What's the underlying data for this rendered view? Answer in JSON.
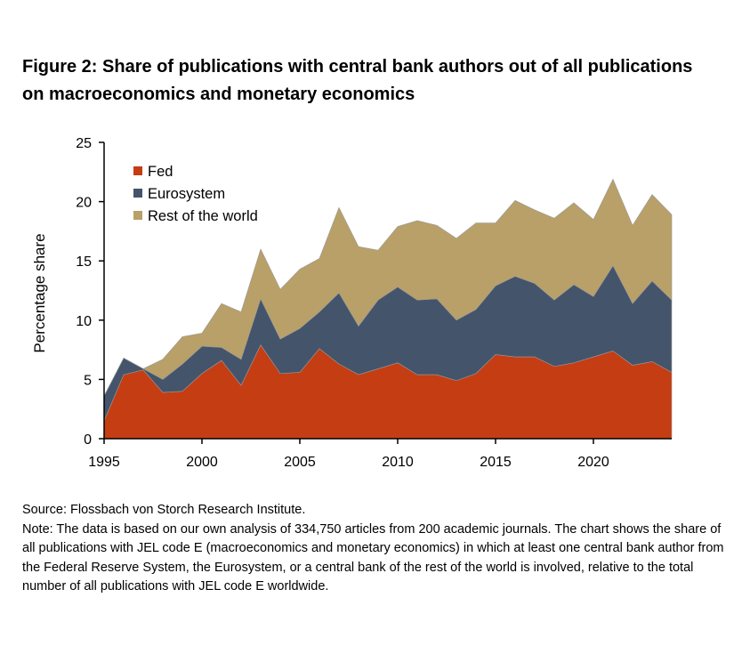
{
  "title_line1": "Figure 2: Share of publications with central bank authors out of all publications",
  "title_line2": "on macroeconomics and monetary economics",
  "source": "Source: Flossbach von Storch Research Institute.",
  "note": "Note: The data is based on our own analysis of 334,750 articles from 200 academic journals. The chart shows the share of all publications with JEL code E (macroeconomics and monetary economics) in which at least one central bank author from the Federal Reserve System, the Eurosystem, or a central bank of the rest of the world is involved, relative to the total number of all publications with JEL code E worldwide.",
  "chart_data": {
    "type": "area",
    "stacked": true,
    "ylabel": "Percentage share",
    "xlabel": "",
    "xlim": [
      1995,
      2024
    ],
    "ylim": [
      0,
      25
    ],
    "xticks": [
      1995,
      2000,
      2005,
      2010,
      2015,
      2020
    ],
    "yticks": [
      0,
      5,
      10,
      15,
      20,
      25
    ],
    "grid": false,
    "legend": "top-left",
    "x": [
      1995,
      1996,
      1997,
      1998,
      1999,
      2000,
      2001,
      2002,
      2003,
      2004,
      2005,
      2006,
      2007,
      2008,
      2009,
      2010,
      2011,
      2012,
      2013,
      2014,
      2015,
      2016,
      2017,
      2018,
      2019,
      2020,
      2021,
      2022,
      2023,
      2024
    ],
    "series": [
      {
        "name": "Fed",
        "color": "#c53d13",
        "values": [
          1.5,
          5.4,
          5.8,
          3.9,
          4.0,
          5.5,
          6.6,
          4.5,
          7.9,
          5.5,
          5.6,
          7.6,
          6.3,
          5.4,
          5.9,
          6.4,
          5.4,
          5.4,
          4.9,
          5.5,
          7.1,
          6.9,
          6.9,
          6.1,
          6.4,
          6.9,
          7.4,
          6.2,
          6.5,
          5.6
        ]
      },
      {
        "name": "Eurosystem",
        "color": "#44546a",
        "values": [
          2.1,
          1.4,
          0.1,
          1.1,
          2.3,
          2.3,
          1.1,
          2.2,
          3.9,
          2.9,
          3.7,
          3.1,
          6.0,
          4.1,
          5.8,
          6.4,
          6.3,
          6.4,
          5.1,
          5.4,
          5.8,
          6.8,
          6.2,
          5.6,
          6.6,
          5.1,
          7.2,
          5.2,
          6.8,
          6.1
        ]
      },
      {
        "name": "Rest of the world",
        "color": "#b8a068",
        "values": [
          0,
          0,
          0,
          1.7,
          2.3,
          1.1,
          3.7,
          4.0,
          4.2,
          4.2,
          5.0,
          4.5,
          7.2,
          6.7,
          4.2,
          5.1,
          6.7,
          6.2,
          6.9,
          7.3,
          5.3,
          6.4,
          6.2,
          6.9,
          6.9,
          6.5,
          7.3,
          6.6,
          7.3,
          7.2
        ]
      }
    ]
  }
}
